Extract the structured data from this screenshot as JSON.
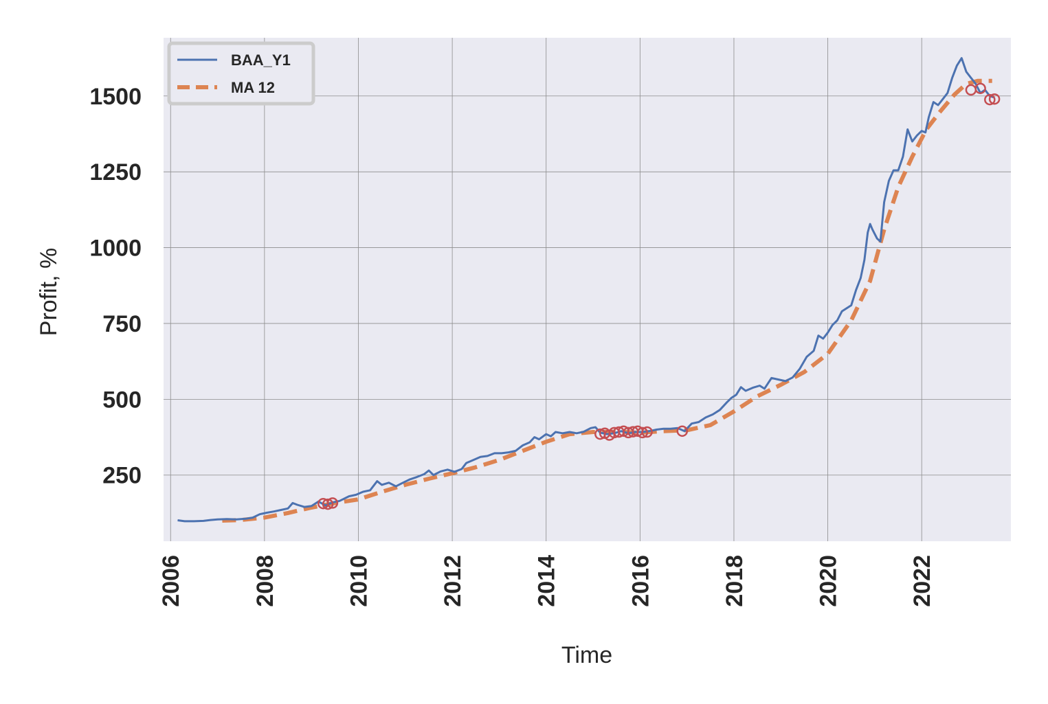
{
  "chart_data": {
    "type": "line",
    "title": "",
    "xlabel": "Time",
    "ylabel": "Profit, %",
    "xlim": [
      2005.85,
      2023.9
    ],
    "ylim": [
      32,
      1692
    ],
    "x_ticks": [
      "2006",
      "2008",
      "2010",
      "2012",
      "2014",
      "2016",
      "2018",
      "2020",
      "2022"
    ],
    "y_ticks": [
      "250",
      "500",
      "750",
      "1000",
      "1250",
      "1500"
    ],
    "grid": true,
    "legend": "top-left",
    "colors": {
      "background": "#eaeaf2",
      "grid": "#8c8c8c",
      "series_1": "#4c72b0",
      "series_2": "#dd8452",
      "markers": "#c44e52"
    },
    "series": [
      {
        "name": "BAA_Y1",
        "style": "solid",
        "points": [
          [
            2006.15,
            101
          ],
          [
            2006.3,
            98
          ],
          [
            2006.5,
            98
          ],
          [
            2006.7,
            99
          ],
          [
            2006.85,
            102
          ],
          [
            2007.0,
            104
          ],
          [
            2007.2,
            105
          ],
          [
            2007.4,
            104
          ],
          [
            2007.6,
            106
          ],
          [
            2007.75,
            110
          ],
          [
            2007.9,
            121
          ],
          [
            2008.05,
            126
          ],
          [
            2008.2,
            130
          ],
          [
            2008.35,
            135
          ],
          [
            2008.5,
            140
          ],
          [
            2008.6,
            158
          ],
          [
            2008.7,
            152
          ],
          [
            2008.85,
            145
          ],
          [
            2009.0,
            148
          ],
          [
            2009.15,
            163
          ],
          [
            2009.3,
            150
          ],
          [
            2009.45,
            160
          ],
          [
            2009.6,
            165
          ],
          [
            2009.8,
            180
          ],
          [
            2009.95,
            185
          ],
          [
            2010.1,
            195
          ],
          [
            2010.25,
            200
          ],
          [
            2010.4,
            230
          ],
          [
            2010.5,
            218
          ],
          [
            2010.65,
            225
          ],
          [
            2010.8,
            213
          ],
          [
            2010.95,
            225
          ],
          [
            2011.1,
            236
          ],
          [
            2011.25,
            244
          ],
          [
            2011.4,
            253
          ],
          [
            2011.5,
            265
          ],
          [
            2011.6,
            250
          ],
          [
            2011.75,
            262
          ],
          [
            2011.9,
            268
          ],
          [
            2012.05,
            261
          ],
          [
            2012.2,
            270
          ],
          [
            2012.3,
            290
          ],
          [
            2012.45,
            300
          ],
          [
            2012.6,
            310
          ],
          [
            2012.75,
            313
          ],
          [
            2012.9,
            322
          ],
          [
            2013.05,
            322
          ],
          [
            2013.2,
            325
          ],
          [
            2013.35,
            330
          ],
          [
            2013.5,
            348
          ],
          [
            2013.65,
            358
          ],
          [
            2013.75,
            375
          ],
          [
            2013.85,
            368
          ],
          [
            2014.0,
            385
          ],
          [
            2014.1,
            378
          ],
          [
            2014.2,
            392
          ],
          [
            2014.35,
            388
          ],
          [
            2014.5,
            392
          ],
          [
            2014.65,
            388
          ],
          [
            2014.8,
            393
          ],
          [
            2014.95,
            405
          ],
          [
            2015.05,
            408
          ],
          [
            2015.15,
            390
          ],
          [
            2015.3,
            385
          ],
          [
            2015.45,
            388
          ],
          [
            2015.6,
            395
          ],
          [
            2015.75,
            388
          ],
          [
            2015.9,
            392
          ],
          [
            2016.05,
            392
          ],
          [
            2016.2,
            395
          ],
          [
            2016.35,
            400
          ],
          [
            2016.5,
            403
          ],
          [
            2016.65,
            403
          ],
          [
            2016.8,
            405
          ],
          [
            2016.95,
            395
          ],
          [
            2017.1,
            420
          ],
          [
            2017.25,
            425
          ],
          [
            2017.4,
            440
          ],
          [
            2017.55,
            450
          ],
          [
            2017.7,
            465
          ],
          [
            2017.85,
            490
          ],
          [
            2017.95,
            505
          ],
          [
            2018.05,
            515
          ],
          [
            2018.15,
            540
          ],
          [
            2018.25,
            528
          ],
          [
            2018.4,
            538
          ],
          [
            2018.55,
            545
          ],
          [
            2018.65,
            535
          ],
          [
            2018.8,
            570
          ],
          [
            2018.95,
            565
          ],
          [
            2019.1,
            560
          ],
          [
            2019.25,
            572
          ],
          [
            2019.4,
            600
          ],
          [
            2019.55,
            640
          ],
          [
            2019.7,
            660
          ],
          [
            2019.8,
            710
          ],
          [
            2019.9,
            700
          ],
          [
            2020.0,
            720
          ],
          [
            2020.1,
            745
          ],
          [
            2020.2,
            760
          ],
          [
            2020.3,
            790
          ],
          [
            2020.4,
            800
          ],
          [
            2020.5,
            810
          ],
          [
            2020.6,
            860
          ],
          [
            2020.7,
            900
          ],
          [
            2020.78,
            960
          ],
          [
            2020.85,
            1050
          ],
          [
            2020.9,
            1078
          ],
          [
            2020.95,
            1060
          ],
          [
            2021.05,
            1030
          ],
          [
            2021.12,
            1020
          ],
          [
            2021.2,
            1150
          ],
          [
            2021.3,
            1220
          ],
          [
            2021.4,
            1255
          ],
          [
            2021.5,
            1255
          ],
          [
            2021.6,
            1300
          ],
          [
            2021.7,
            1390
          ],
          [
            2021.8,
            1350
          ],
          [
            2021.9,
            1370
          ],
          [
            2022.0,
            1385
          ],
          [
            2022.08,
            1380
          ],
          [
            2022.15,
            1430
          ],
          [
            2022.25,
            1480
          ],
          [
            2022.35,
            1470
          ],
          [
            2022.45,
            1490
          ],
          [
            2022.55,
            1510
          ],
          [
            2022.65,
            1560
          ],
          [
            2022.75,
            1600
          ],
          [
            2022.85,
            1625
          ],
          [
            2022.95,
            1580
          ],
          [
            2023.05,
            1560
          ],
          [
            2023.15,
            1540
          ],
          [
            2023.25,
            1510
          ],
          [
            2023.35,
            1520
          ],
          [
            2023.45,
            1500
          ],
          [
            2023.55,
            1495
          ]
        ]
      },
      {
        "name": "MA 12",
        "style": "dashed",
        "points": [
          [
            2007.1,
            100
          ],
          [
            2007.5,
            102
          ],
          [
            2008.0,
            110
          ],
          [
            2008.5,
            125
          ],
          [
            2009.0,
            143
          ],
          [
            2009.5,
            158
          ],
          [
            2010.0,
            170
          ],
          [
            2010.5,
            195
          ],
          [
            2011.0,
            218
          ],
          [
            2011.5,
            238
          ],
          [
            2012.0,
            256
          ],
          [
            2012.5,
            276
          ],
          [
            2013.0,
            300
          ],
          [
            2013.5,
            330
          ],
          [
            2014.0,
            360
          ],
          [
            2014.5,
            385
          ],
          [
            2015.0,
            392
          ],
          [
            2015.5,
            393
          ],
          [
            2016.0,
            390
          ],
          [
            2016.5,
            395
          ],
          [
            2017.0,
            398
          ],
          [
            2017.5,
            415
          ],
          [
            2018.0,
            460
          ],
          [
            2018.5,
            510
          ],
          [
            2019.0,
            548
          ],
          [
            2019.5,
            590
          ],
          [
            2020.0,
            650
          ],
          [
            2020.5,
            760
          ],
          [
            2020.9,
            890
          ],
          [
            2021.2,
            1060
          ],
          [
            2021.5,
            1200
          ],
          [
            2021.8,
            1300
          ],
          [
            2022.1,
            1390
          ],
          [
            2022.4,
            1450
          ],
          [
            2022.7,
            1505
          ],
          [
            2022.95,
            1540
          ],
          [
            2023.2,
            1550
          ],
          [
            2023.35,
            1550
          ],
          [
            2023.5,
            1550
          ]
        ]
      }
    ],
    "markers": [
      [
        2009.25,
        156
      ],
      [
        2009.35,
        154
      ],
      [
        2009.45,
        158
      ],
      [
        2015.15,
        385
      ],
      [
        2015.25,
        388
      ],
      [
        2015.35,
        382
      ],
      [
        2015.45,
        390
      ],
      [
        2015.55,
        392
      ],
      [
        2015.65,
        395
      ],
      [
        2015.75,
        390
      ],
      [
        2015.85,
        393
      ],
      [
        2015.95,
        395
      ],
      [
        2016.05,
        390
      ],
      [
        2016.15,
        392
      ],
      [
        2016.9,
        395
      ],
      [
        2023.05,
        1520
      ],
      [
        2023.25,
        1525
      ],
      [
        2023.45,
        1488
      ],
      [
        2023.55,
        1490
      ]
    ]
  }
}
